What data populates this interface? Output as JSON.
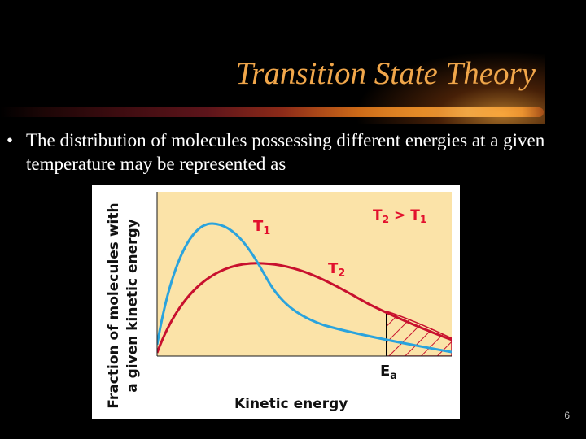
{
  "slide": {
    "title": "Transition State Theory",
    "bullet_symbol": "•",
    "bullet_text": "The distribution of molecules possessing different energies at a given temperature may  be represented as",
    "page_number": "6"
  },
  "figure": {
    "ylabel_line1": "Fraction of molecules with",
    "ylabel_line2": "a given kinetic energy",
    "xlabel": "Kinetic energy",
    "curve_label_t1": "T1",
    "curve_label_t2": "T2",
    "relation_label": "T2 > T1",
    "threshold_label": "Ea",
    "colors": {
      "plot_background": "#fbe3a8",
      "t1_curve": "#2aa3dd",
      "t2_curve": "#c8102e",
      "label_text": "#e2102d",
      "axis_text": "#111111",
      "title": "#f0a64a"
    }
  }
}
